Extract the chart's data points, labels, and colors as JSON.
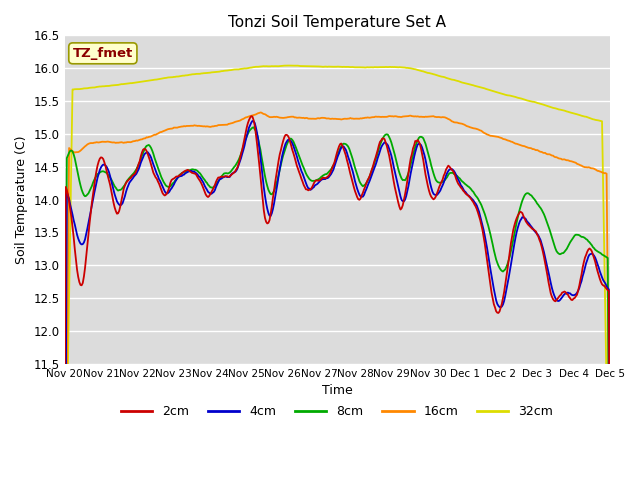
{
  "title": "Tonzi Soil Temperature Set A",
  "ylabel": "Soil Temperature (C)",
  "xlabel": "Time",
  "watermark": "TZ_fmet",
  "ylim": [
    11.5,
    16.5
  ],
  "yticks": [
    11.5,
    12.0,
    12.5,
    13.0,
    13.5,
    14.0,
    14.5,
    15.0,
    15.5,
    16.0,
    16.5
  ],
  "xtick_labels": [
    "Nov 20",
    "Nov 21",
    "Nov 22",
    "Nov 23",
    "Nov 24",
    "Nov 25",
    "Nov 26",
    "Nov 27",
    "Nov 28",
    "Nov 29",
    "Nov 30",
    "Dec 1",
    "Dec 2",
    "Dec 3",
    "Dec 4",
    "Dec 5"
  ],
  "colors": {
    "2cm": "#cc0000",
    "4cm": "#0000cc",
    "8cm": "#00aa00",
    "16cm": "#ff8800",
    "32cm": "#dddd00"
  },
  "bg_color": "#dcdcdc",
  "plot_bg": "#dcdcdc"
}
